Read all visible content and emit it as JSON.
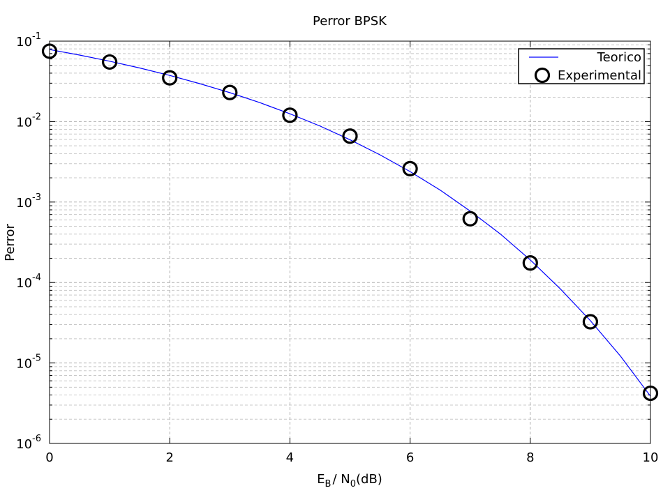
{
  "chart_data": {
    "type": "line",
    "title": "Perror BPSK",
    "xlabel": {
      "main": "E",
      "sub1": "B",
      "mid": "/ N",
      "sub2": "0",
      "tail": "(dB)"
    },
    "ylabel": "Perror",
    "xlim": [
      0,
      10
    ],
    "ylim": [
      1e-06,
      0.1
    ],
    "yscale": "log",
    "grid": true,
    "legend_position": "top-right",
    "x_ticks": [
      "0",
      "2",
      "4",
      "6",
      "8",
      "10"
    ],
    "y_ticks": [
      {
        "value": 1e-06,
        "base": "10",
        "exp": "-6"
      },
      {
        "value": 1e-05,
        "base": "10",
        "exp": "-5"
      },
      {
        "value": 0.0001,
        "base": "10",
        "exp": "-4"
      },
      {
        "value": 0.001,
        "base": "10",
        "exp": "-3"
      },
      {
        "value": 0.01,
        "base": "10",
        "exp": "-2"
      },
      {
        "value": 0.1,
        "base": "10",
        "exp": "-1"
      }
    ],
    "series": [
      {
        "name": "Teorico",
        "style": "line",
        "color": "#0000ff",
        "x": [
          0,
          0.5,
          1,
          1.5,
          2,
          2.5,
          3,
          3.5,
          4,
          4.5,
          5,
          5.5,
          6,
          6.5,
          7,
          7.5,
          8,
          8.5,
          9,
          9.5,
          10
        ],
        "y": [
          0.0786,
          0.0671,
          0.0563,
          0.0464,
          0.0375,
          0.0296,
          0.0229,
          0.0172,
          0.0125,
          0.00881,
          0.00595,
          0.00386,
          0.00239,
          0.00141,
          0.000773,
          0.000402,
          0.000191,
          8.34e-05,
          3.36e-05,
          1.22e-05,
          3.87e-06
        ]
      },
      {
        "name": "Experimental",
        "style": "marker-circle",
        "color": "#000000",
        "x": [
          0,
          1,
          2,
          3,
          4,
          5,
          6,
          7,
          8,
          9,
          10
        ],
        "y": [
          0.075,
          0.055,
          0.035,
          0.023,
          0.012,
          0.0066,
          0.0026,
          0.00062,
          0.000175,
          3.25e-05,
          4.2e-06
        ]
      }
    ]
  }
}
